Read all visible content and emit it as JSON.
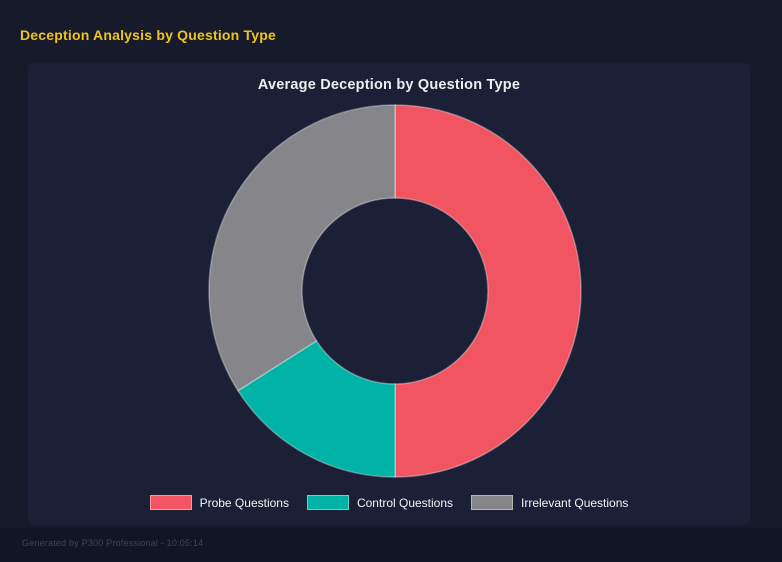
{
  "page": {
    "title": "Deception Analysis by Question Type",
    "footer": "Generated by P300 Professional - 10:05:14"
  },
  "theme": {
    "background": "#161a2b",
    "panel_background": "#1c2036",
    "footer_background": "#121526",
    "heading_color": "#f0c41d",
    "title_color": "#edeef2",
    "legend_text_color": "#f2f3f5",
    "footer_text_color": "#3e4459"
  },
  "chart_data": {
    "type": "pie",
    "subtype": "donut",
    "title": "Average Deception by Question Type",
    "categories": [
      "Probe Questions",
      "Control Questions",
      "Irrelevant Questions"
    ],
    "values": [
      50,
      16,
      34
    ],
    "values_unit": "% of ring (estimated from arc angles)",
    "colors": [
      "#F05561",
      "#00B3A6",
      "#85858A"
    ],
    "inner_radius_ratio": 0.5,
    "start_angle_deg_clockwise_from_top": 0,
    "legend_position": "bottom",
    "grid": false
  }
}
